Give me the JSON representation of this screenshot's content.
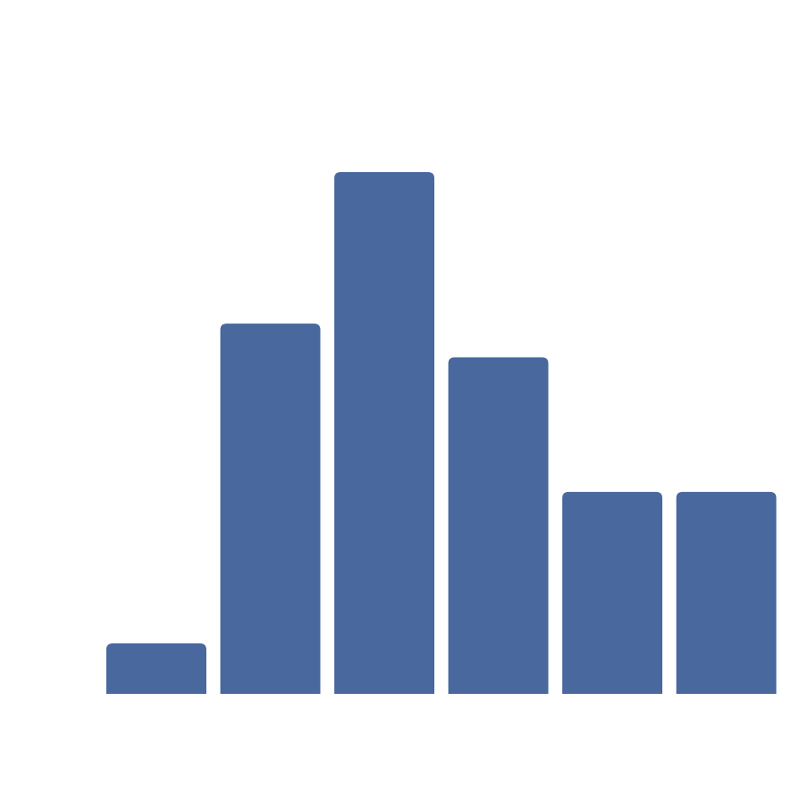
{
  "chart_data": {
    "type": "bar",
    "categories": [
      "",
      "",
      "",
      "",
      "",
      ""
    ],
    "values": [
      3,
      22,
      31,
      20,
      12,
      12
    ],
    "ylim": [
      0,
      31
    ],
    "grid": false,
    "axes_visible": false,
    "bar_color": "#48689E",
    "background": "#ffffff"
  }
}
